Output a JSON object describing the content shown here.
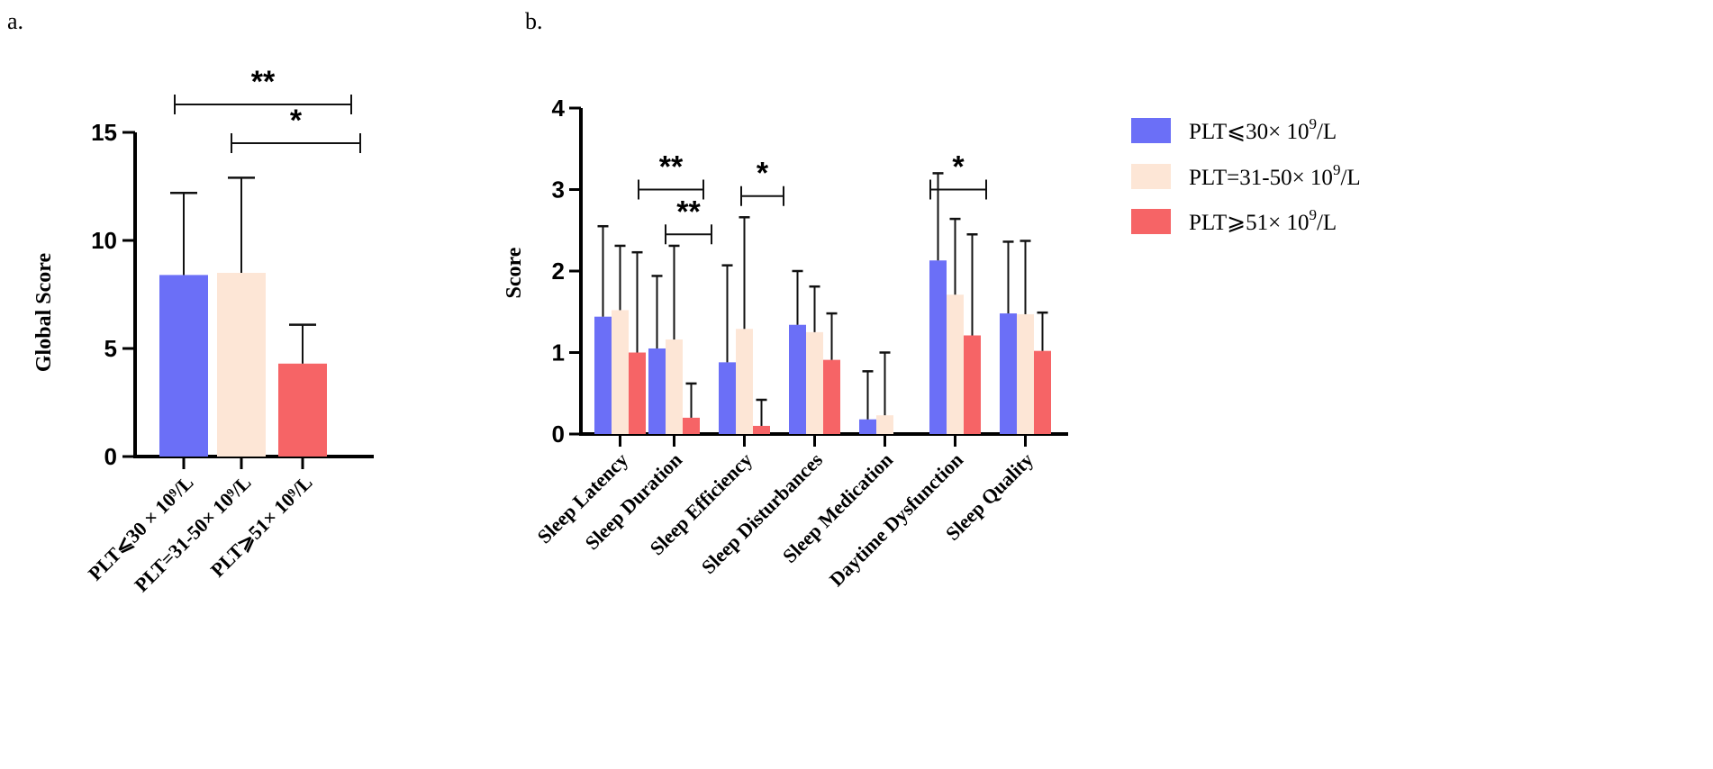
{
  "chart_data": [
    {
      "panel_label": "a.",
      "type": "bar",
      "ylabel": "Global Score",
      "ylim": [
        0,
        15
      ],
      "yticks": [
        0,
        5,
        10,
        15
      ],
      "categories": [
        "PLT⩽30 × 10⁹/L",
        "PLT=31-50× 10⁹/L",
        "PLT⩾51× 10⁹/L"
      ],
      "values": [
        8.4,
        8.5,
        4.3
      ],
      "error_upper": [
        12.2,
        12.9,
        6.1
      ],
      "colors": [
        "#6b6ff7",
        "#fde6d6",
        "#f66466"
      ],
      "significance": [
        {
          "from": 0,
          "to": 2,
          "label": "**"
        },
        {
          "from": 1,
          "to": 2,
          "label": "*"
        }
      ]
    },
    {
      "panel_label": "b.",
      "type": "bar",
      "ylabel": "Score",
      "ylim": [
        0,
        4
      ],
      "yticks": [
        0,
        1,
        2,
        3,
        4
      ],
      "categories": [
        "Sleep Latency",
        "Sleep Duration",
        "Sleep Efficiency",
        "Sleep Disturbances",
        "Sleep Medication",
        "Daytime Dysfunction",
        "Sleep Quality"
      ],
      "series": [
        {
          "name": "PLT⩽30× 10⁹/L",
          "color": "#6b6ff7",
          "values": [
            1.44,
            1.05,
            0.88,
            1.34,
            0.18,
            2.13,
            1.48
          ],
          "error_upper": [
            2.55,
            1.94,
            2.07,
            2.0,
            0.77,
            3.2,
            2.36
          ]
        },
        {
          "name": "PLT=31-50× 10⁹/L",
          "color": "#fde6d6",
          "values": [
            1.52,
            1.16,
            1.29,
            1.25,
            0.23,
            1.71,
            1.47
          ],
          "error_upper": [
            2.31,
            2.31,
            2.66,
            1.81,
            1.0,
            2.64,
            2.37
          ]
        },
        {
          "name": "PLT⩾51× 10⁹/L",
          "color": "#f66466",
          "values": [
            1.0,
            0.2,
            0.1,
            0.91,
            0,
            1.21,
            1.02
          ],
          "error_upper": [
            2.23,
            0.62,
            0.42,
            1.48,
            0,
            2.45,
            1.49
          ]
        }
      ],
      "significance": [
        {
          "category": 1,
          "label": "**",
          "level": 3.0
        },
        {
          "category": 1,
          "label": "**",
          "level": 2.45
        },
        {
          "category": 2,
          "label": "*",
          "level": 2.92
        },
        {
          "category": 5,
          "label": "*",
          "level": 3.0
        }
      ],
      "legend": {
        "placement": "right",
        "entries": [
          {
            "prefix": "PLT⩽30× 10",
            "sup": "9",
            "suffix": "/L"
          },
          {
            "prefix": "PLT=31-50× 10",
            "sup": "9",
            "suffix": "/L"
          },
          {
            "prefix": "PLT⩾51× 10",
            "sup": "9",
            "suffix": "/L"
          }
        ]
      }
    }
  ]
}
